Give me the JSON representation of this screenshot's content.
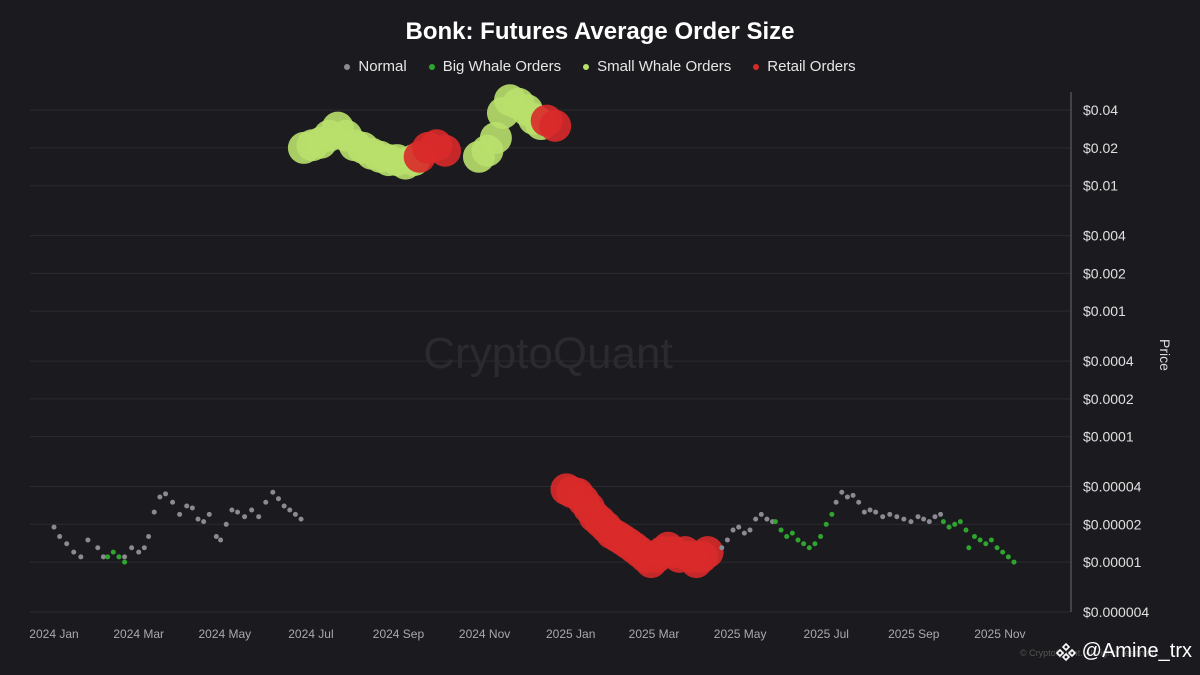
{
  "chart_data": {
    "type": "scatter",
    "title": "Bonk: Futures Average Order Size",
    "ylabel": "Price",
    "yscale": "log",
    "ylim": [
      4e-06,
      0.05
    ],
    "xlim": [
      "2023-12-15",
      "2025-12-15"
    ],
    "grid": true,
    "legend_position": "top-center",
    "watermark": "CryptoQuant",
    "yticks": [
      {
        "value": 0.04,
        "label": "$0.04"
      },
      {
        "value": 0.02,
        "label": "$0.02"
      },
      {
        "value": 0.01,
        "label": "$0.01"
      },
      {
        "value": 0.004,
        "label": "$0.004"
      },
      {
        "value": 0.002,
        "label": "$0.002"
      },
      {
        "value": 0.001,
        "label": "$0.001"
      },
      {
        "value": 0.0004,
        "label": "$0.0004"
      },
      {
        "value": 0.0002,
        "label": "$0.0002"
      },
      {
        "value": 0.0001,
        "label": "$0.0001"
      },
      {
        "value": 4e-05,
        "label": "$0.00004"
      },
      {
        "value": 2e-05,
        "label": "$0.00002"
      },
      {
        "value": 1e-05,
        "label": "$0.00001"
      },
      {
        "value": 4e-06,
        "label": "$0.000004"
      }
    ],
    "xticks": [
      {
        "date": "2024-01-01",
        "label": "2024 Jan"
      },
      {
        "date": "2024-03-01",
        "label": "2024 Mar"
      },
      {
        "date": "2024-05-01",
        "label": "2024 May"
      },
      {
        "date": "2024-07-01",
        "label": "2024 Jul"
      },
      {
        "date": "2024-09-01",
        "label": "2024 Sep"
      },
      {
        "date": "2024-11-01",
        "label": "2024 Nov"
      },
      {
        "date": "2025-01-01",
        "label": "2025 Jan"
      },
      {
        "date": "2025-03-01",
        "label": "2025 Mar"
      },
      {
        "date": "2025-05-01",
        "label": "2025 May"
      },
      {
        "date": "2025-07-01",
        "label": "2025 Jul"
      },
      {
        "date": "2025-09-01",
        "label": "2025 Sep"
      },
      {
        "date": "2025-11-01",
        "label": "2025 Nov"
      }
    ],
    "series": [
      {
        "name": "Normal",
        "color": "#8a8a90",
        "size": "small",
        "points": [
          [
            "2024-01-01",
            1.9e-05
          ],
          [
            "2024-01-05",
            1.6e-05
          ],
          [
            "2024-01-10",
            1.4e-05
          ],
          [
            "2024-01-15",
            1.2e-05
          ],
          [
            "2024-01-20",
            1.1e-05
          ],
          [
            "2024-01-25",
            1.5e-05
          ],
          [
            "2024-02-01",
            1.3e-05
          ],
          [
            "2024-02-05",
            1.1e-05
          ],
          [
            "2024-02-20",
            1.1e-05
          ],
          [
            "2024-02-25",
            1.3e-05
          ],
          [
            "2024-03-01",
            1.2e-05
          ],
          [
            "2024-03-05",
            1.3e-05
          ],
          [
            "2024-03-08",
            1.6e-05
          ],
          [
            "2024-03-12",
            2.5e-05
          ],
          [
            "2024-03-16",
            3.3e-05
          ],
          [
            "2024-03-20",
            3.5e-05
          ],
          [
            "2024-03-25",
            3e-05
          ],
          [
            "2024-03-30",
            2.4e-05
          ],
          [
            "2024-04-04",
            2.8e-05
          ],
          [
            "2024-04-08",
            2.7e-05
          ],
          [
            "2024-04-12",
            2.2e-05
          ],
          [
            "2024-04-16",
            2.1e-05
          ],
          [
            "2024-04-20",
            2.4e-05
          ],
          [
            "2024-04-25",
            1.6e-05
          ],
          [
            "2024-04-28",
            1.5e-05
          ],
          [
            "2024-05-02",
            2e-05
          ],
          [
            "2024-05-06",
            2.6e-05
          ],
          [
            "2024-05-10",
            2.5e-05
          ],
          [
            "2024-05-15",
            2.3e-05
          ],
          [
            "2024-05-20",
            2.6e-05
          ],
          [
            "2024-05-25",
            2.3e-05
          ],
          [
            "2024-05-30",
            3e-05
          ],
          [
            "2024-06-04",
            3.6e-05
          ],
          [
            "2024-06-08",
            3.2e-05
          ],
          [
            "2024-06-12",
            2.8e-05
          ],
          [
            "2024-06-16",
            2.6e-05
          ],
          [
            "2024-06-20",
            2.4e-05
          ],
          [
            "2024-06-24",
            2.2e-05
          ],
          [
            "2025-04-18",
            1.3e-05
          ],
          [
            "2025-04-22",
            1.5e-05
          ],
          [
            "2025-04-26",
            1.8e-05
          ],
          [
            "2025-04-30",
            1.9e-05
          ],
          [
            "2025-05-04",
            1.7e-05
          ],
          [
            "2025-05-08",
            1.8e-05
          ],
          [
            "2025-05-12",
            2.2e-05
          ],
          [
            "2025-05-16",
            2.4e-05
          ],
          [
            "2025-05-20",
            2.2e-05
          ],
          [
            "2025-05-24",
            2.1e-05
          ],
          [
            "2025-07-08",
            3e-05
          ],
          [
            "2025-07-12",
            3.6e-05
          ],
          [
            "2025-07-16",
            3.3e-05
          ],
          [
            "2025-07-20",
            3.4e-05
          ],
          [
            "2025-07-24",
            3e-05
          ],
          [
            "2025-07-28",
            2.5e-05
          ],
          [
            "2025-08-01",
            2.6e-05
          ],
          [
            "2025-08-05",
            2.5e-05
          ],
          [
            "2025-08-10",
            2.3e-05
          ],
          [
            "2025-08-15",
            2.4e-05
          ],
          [
            "2025-08-20",
            2.3e-05
          ],
          [
            "2025-08-25",
            2.2e-05
          ],
          [
            "2025-08-30",
            2.1e-05
          ],
          [
            "2025-09-04",
            2.3e-05
          ],
          [
            "2025-09-08",
            2.2e-05
          ],
          [
            "2025-09-12",
            2.1e-05
          ],
          [
            "2025-09-16",
            2.3e-05
          ],
          [
            "2025-09-20",
            2.4e-05
          ]
        ]
      },
      {
        "name": "Big Whale Orders",
        "color": "#2fa52f",
        "size": "small",
        "points": [
          [
            "2024-02-08",
            1.1e-05
          ],
          [
            "2024-02-12",
            1.2e-05
          ],
          [
            "2024-02-16",
            1.1e-05
          ],
          [
            "2024-02-20",
            1e-05
          ],
          [
            "2025-05-26",
            2.1e-05
          ],
          [
            "2025-05-30",
            1.8e-05
          ],
          [
            "2025-06-03",
            1.6e-05
          ],
          [
            "2025-06-07",
            1.7e-05
          ],
          [
            "2025-06-11",
            1.5e-05
          ],
          [
            "2025-06-15",
            1.4e-05
          ],
          [
            "2025-06-19",
            1.3e-05
          ],
          [
            "2025-06-23",
            1.4e-05
          ],
          [
            "2025-06-27",
            1.6e-05
          ],
          [
            "2025-07-01",
            2e-05
          ],
          [
            "2025-07-05",
            2.4e-05
          ],
          [
            "2025-09-22",
            2.1e-05
          ],
          [
            "2025-09-26",
            1.9e-05
          ],
          [
            "2025-09-30",
            2e-05
          ],
          [
            "2025-10-04",
            2.1e-05
          ],
          [
            "2025-10-08",
            1.8e-05
          ],
          [
            "2025-10-10",
            1.3e-05
          ],
          [
            "2025-10-14",
            1.6e-05
          ],
          [
            "2025-10-18",
            1.5e-05
          ],
          [
            "2025-10-22",
            1.4e-05
          ],
          [
            "2025-10-26",
            1.5e-05
          ],
          [
            "2025-10-30",
            1.3e-05
          ],
          [
            "2025-11-03",
            1.2e-05
          ],
          [
            "2025-11-07",
            1.1e-05
          ],
          [
            "2025-11-11",
            1e-05
          ]
        ]
      },
      {
        "name": "Small Whale Orders",
        "color": "#b9e06b",
        "size": "large",
        "points": [
          [
            "2024-06-26",
            0.02
          ],
          [
            "2024-07-02",
            0.021
          ],
          [
            "2024-07-08",
            0.022
          ],
          [
            "2024-07-14",
            0.025
          ],
          [
            "2024-07-20",
            0.029
          ],
          [
            "2024-07-26",
            0.025
          ],
          [
            "2024-08-01",
            0.021
          ],
          [
            "2024-08-07",
            0.02
          ],
          [
            "2024-08-13",
            0.018
          ],
          [
            "2024-08-19",
            0.017
          ],
          [
            "2024-08-25",
            0.016
          ],
          [
            "2024-08-31",
            0.016
          ],
          [
            "2024-09-06",
            0.015
          ],
          [
            "2024-09-12",
            0.016
          ],
          [
            "2024-10-28",
            0.017
          ],
          [
            "2024-11-03",
            0.019
          ],
          [
            "2024-11-09",
            0.024
          ],
          [
            "2024-11-14",
            0.038
          ],
          [
            "2024-11-19",
            0.048
          ],
          [
            "2024-11-25",
            0.045
          ],
          [
            "2024-12-01",
            0.04
          ],
          [
            "2024-12-06",
            0.034
          ],
          [
            "2024-12-11",
            0.031
          ]
        ]
      },
      {
        "name": "Retail Orders",
        "color": "#d92a2a",
        "size": "large",
        "points": [
          [
            "2024-09-16",
            0.017
          ],
          [
            "2024-09-22",
            0.02
          ],
          [
            "2024-09-28",
            0.021
          ],
          [
            "2024-10-04",
            0.019
          ],
          [
            "2024-12-15",
            0.033
          ],
          [
            "2024-12-21",
            0.03
          ],
          [
            "2024-12-29",
            3.8e-05
          ],
          [
            "2025-01-02",
            3.6e-05
          ],
          [
            "2025-01-06",
            3.5e-05
          ],
          [
            "2025-01-10",
            3.1e-05
          ],
          [
            "2025-01-14",
            2.7e-05
          ],
          [
            "2025-01-18",
            2.3e-05
          ],
          [
            "2025-01-22",
            2.1e-05
          ],
          [
            "2025-01-26",
            1.9e-05
          ],
          [
            "2025-01-30",
            1.7e-05
          ],
          [
            "2025-02-03",
            1.6e-05
          ],
          [
            "2025-02-07",
            1.5e-05
          ],
          [
            "2025-02-11",
            1.4e-05
          ],
          [
            "2025-02-15",
            1.3e-05
          ],
          [
            "2025-02-19",
            1.2e-05
          ],
          [
            "2025-02-23",
            1.1e-05
          ],
          [
            "2025-02-27",
            1e-05
          ],
          [
            "2025-03-03",
            1.1e-05
          ],
          [
            "2025-03-07",
            1.2e-05
          ],
          [
            "2025-03-11",
            1.3e-05
          ],
          [
            "2025-03-15",
            1.2e-05
          ],
          [
            "2025-03-19",
            1.1e-05
          ],
          [
            "2025-03-23",
            1.2e-05
          ],
          [
            "2025-03-27",
            1.1e-05
          ],
          [
            "2025-03-31",
            1e-05
          ],
          [
            "2025-04-04",
            1.1e-05
          ],
          [
            "2025-04-08",
            1.2e-05
          ]
        ]
      }
    ]
  },
  "credit": {
    "text": "@Amine_trx",
    "icon": "binance-diamond-icon",
    "copyright": "© CryptoQuant. All rights reserved."
  }
}
